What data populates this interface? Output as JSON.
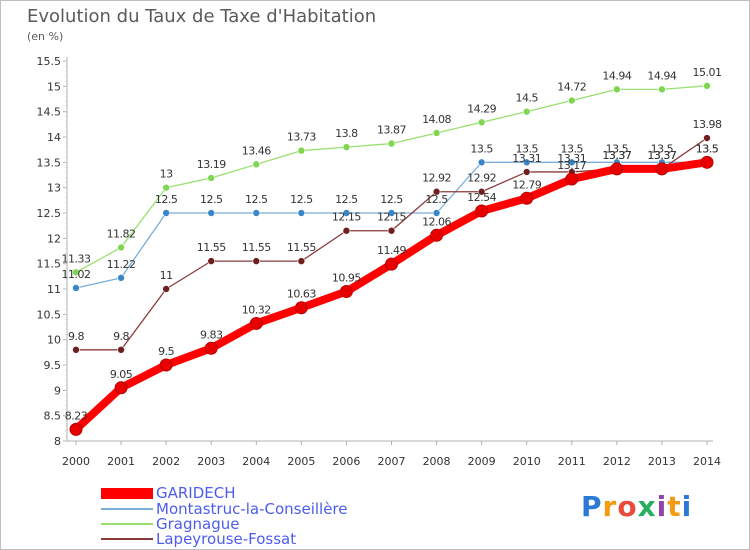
{
  "header": {
    "title": "Evolution du Taux de Taxe d'Habitation",
    "unit": "(en %)"
  },
  "logo": {
    "text": "Proxiti"
  },
  "chart_data": {
    "type": "line",
    "title": "Evolution du Taux de Taxe d'Habitation",
    "ylabel": "(en %)",
    "xlabel": "",
    "x": [
      "2000",
      "2001",
      "2002",
      "2003",
      "2004",
      "2005",
      "2006",
      "2007",
      "2008",
      "2009",
      "2010",
      "2011",
      "2012",
      "2013",
      "2014"
    ],
    "ylim": [
      8,
      15.5
    ],
    "yticks": [
      "8",
      "8.5",
      "9",
      "9.5",
      "10",
      "10.5",
      "11",
      "11.5",
      "12",
      "12.5",
      "13",
      "13.5",
      "14",
      "14.5",
      "15",
      "15.5"
    ],
    "grid": false,
    "legend": "bottom-left",
    "series": [
      {
        "name": "GARIDECH",
        "color": "#ff0000",
        "marker_color": "#e60000",
        "values": [
          8.23,
          9.05,
          9.5,
          9.83,
          10.32,
          10.63,
          10.95,
          11.49,
          12.06,
          12.54,
          12.79,
          13.17,
          13.37,
          13.37,
          13.5
        ],
        "labels": [
          "8.23",
          "9.05",
          "9.5",
          "9.83",
          "10.32",
          "10.63",
          "10.95",
          "11.49",
          "12.06",
          "12.54",
          "12.79",
          "13.17",
          "13.37",
          "13.37",
          "13.5"
        ]
      },
      {
        "name": "Montastruc-la-Conseillère",
        "color": "#7aaed8",
        "marker_color": "#3a86c8",
        "values": [
          11.02,
          11.22,
          12.5,
          12.5,
          12.5,
          12.5,
          12.5,
          12.5,
          12.5,
          13.5,
          13.5,
          13.5,
          13.5,
          13.5,
          13.5
        ],
        "labels": [
          "11.02",
          "11.22",
          "12.5",
          "12.5",
          "12.5",
          "12.5",
          "12.5",
          "12.5",
          "12.5",
          "13.5",
          "13.5",
          "13.5",
          "13.5",
          "13.5",
          "13.5"
        ]
      },
      {
        "name": "Gragnague",
        "color": "#99e070",
        "marker_color": "#7fd650",
        "values": [
          11.33,
          11.82,
          13,
          13.19,
          13.46,
          13.73,
          13.8,
          13.87,
          14.08,
          14.29,
          14.5,
          14.72,
          14.94,
          14.94,
          15.01
        ],
        "labels": [
          "11.33",
          "11.82",
          "13",
          "13.19",
          "13.46",
          "13.73",
          "13.8",
          "13.87",
          "14.08",
          "14.29",
          "14.5",
          "14.72",
          "14.94",
          "14.94",
          "15.01"
        ]
      },
      {
        "name": "Lapeyrouse-Fossat",
        "color": "#8b3a3a",
        "marker_color": "#6e1f1f",
        "values": [
          9.8,
          9.8,
          11,
          11.55,
          11.55,
          11.55,
          12.15,
          12.15,
          12.92,
          12.92,
          13.31,
          13.31,
          13.37,
          13.37,
          13.98
        ],
        "labels": [
          "9.8",
          "9.8",
          "11",
          "11.55",
          "11.55",
          "11.55",
          "12.15",
          "12.15",
          "12.92",
          "12.92",
          "13.31",
          "13.31",
          "13.37",
          "13.37",
          "13.98"
        ]
      }
    ]
  }
}
